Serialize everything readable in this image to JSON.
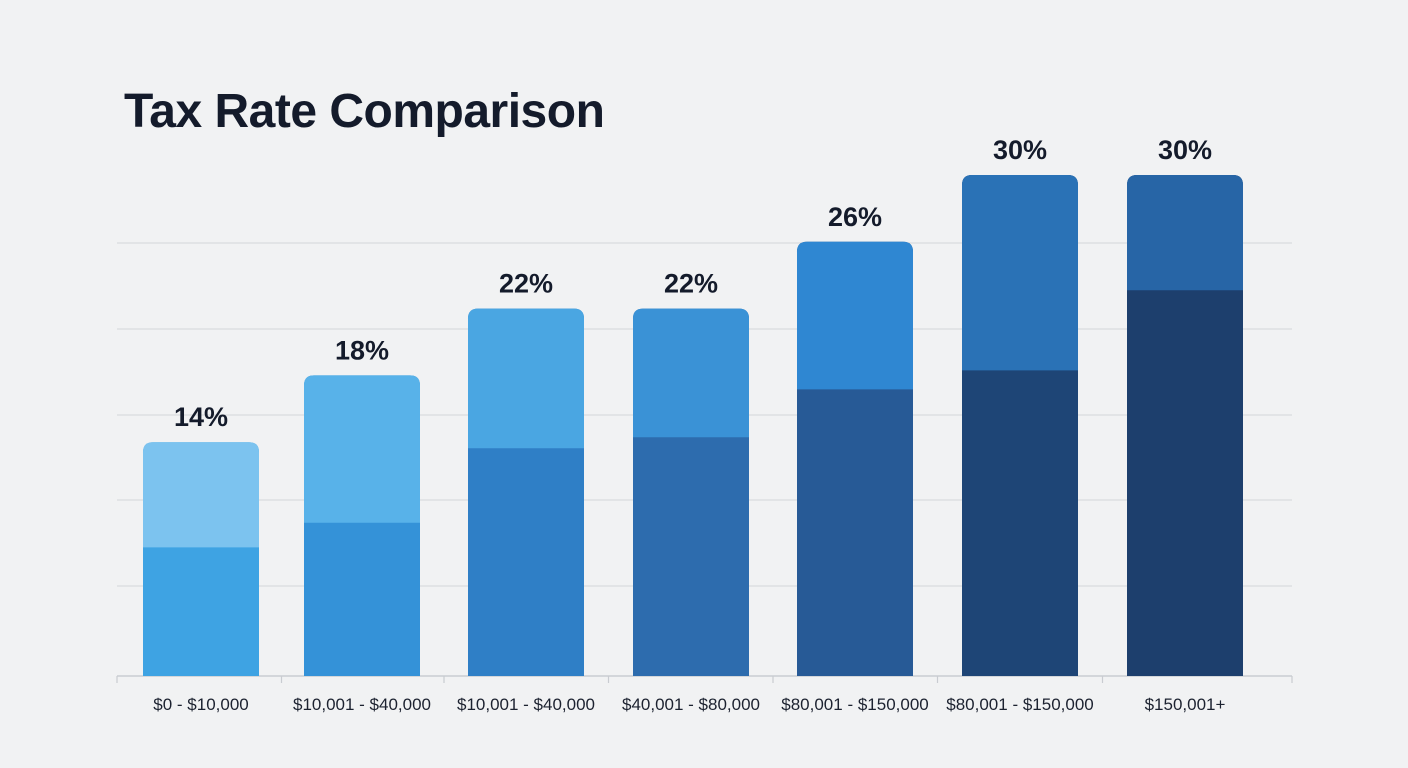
{
  "chart_data": {
    "type": "bar",
    "title": "Tax Rate Comparison",
    "xlabel": "",
    "ylabel": "",
    "categories": [
      "$0 - $10,000",
      "$10,001 - $40,000",
      "$10,001 - $40,000",
      "$40,001 - $80,000",
      "$80,001 - $150,000",
      "$80,001 - $150,000",
      "$150,001+"
    ],
    "values": [
      14,
      18,
      22,
      22,
      26,
      30,
      30
    ],
    "data_labels": [
      "14%",
      "18%",
      "22%",
      "22%",
      "26%",
      "30%",
      "30%"
    ],
    "ylim": [
      0,
      30
    ],
    "grid": true,
    "legend": "none",
    "colors": {
      "top_segments": [
        "#7cc3ef",
        "#58b2e9",
        "#4aa6e2",
        "#3a92d6",
        "#2f87d2",
        "#2a72b6",
        "#2765a6"
      ],
      "bottom_segments": [
        "#3ea3e3",
        "#3492d8",
        "#2f7fc6",
        "#2d6cae",
        "#275a96",
        "#1e4576",
        "#1d3f6d"
      ],
      "gridline": "#d9dbde",
      "axis": "#c9ccd1",
      "text": "#141b2b"
    }
  }
}
